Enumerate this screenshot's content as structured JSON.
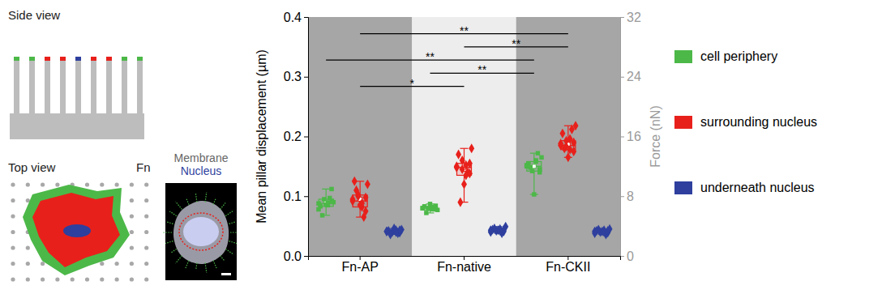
{
  "schematic": {
    "side_view": "Side view",
    "top_view": "Top view",
    "top_view_label": "Fn",
    "image_labels": [
      "Membrane",
      "Nucleus"
    ]
  },
  "chart_data": {
    "type": "box",
    "categories": [
      "Fn-AP",
      "Fn-native",
      "Fn-CKII"
    ],
    "y_label": "Mean pillar displacement (µm)",
    "y2_label": "Force (nN)",
    "ylim": [
      0,
      0.4
    ],
    "yticks": [
      {
        "value": 0,
        "label": "0.0"
      },
      {
        "value": 0.1,
        "label": "0.1"
      },
      {
        "value": 0.2,
        "label": "0.2"
      },
      {
        "value": 0.3,
        "label": "0.3"
      },
      {
        "value": 0.4,
        "label": "0.4"
      }
    ],
    "y2lim": [
      0,
      32
    ],
    "y2ticks": [
      0,
      8,
      16,
      24,
      32
    ],
    "legend": "right",
    "series": [
      {
        "name": "cell periphery",
        "color": "#4cb848",
        "marker": "square",
        "boxes": [
          {
            "min": 0.068,
            "q1": 0.083,
            "median": 0.088,
            "q3": 0.095,
            "max": 0.112,
            "mean": 0.089
          },
          {
            "min": 0.072,
            "q1": 0.077,
            "median": 0.08,
            "q3": 0.083,
            "max": 0.087,
            "mean": 0.08
          },
          {
            "min": 0.103,
            "q1": 0.142,
            "median": 0.15,
            "q3": 0.158,
            "max": 0.172,
            "mean": 0.15
          }
        ],
        "points": [
          [
            0.088,
            0.092,
            0.085,
            0.095,
            0.083,
            0.09,
            0.097,
            0.086,
            0.068,
            0.078,
            0.112,
            0.089
          ],
          [
            0.08,
            0.078,
            0.082,
            0.079,
            0.083,
            0.077,
            0.081,
            0.087,
            0.072,
            0.08,
            0.084,
            0.078
          ],
          [
            0.15,
            0.145,
            0.158,
            0.142,
            0.155,
            0.165,
            0.172,
            0.103,
            0.148,
            0.152,
            0.14,
            0.16
          ]
        ]
      },
      {
        "name": "surrounding nucleus",
        "color": "#e8201b",
        "marker": "diamond",
        "boxes": [
          {
            "min": 0.065,
            "q1": 0.082,
            "median": 0.092,
            "q3": 0.102,
            "max": 0.125,
            "mean": 0.095
          },
          {
            "min": 0.09,
            "q1": 0.135,
            "median": 0.148,
            "q3": 0.155,
            "max": 0.18,
            "mean": 0.145
          },
          {
            "min": 0.165,
            "q1": 0.178,
            "median": 0.185,
            "q3": 0.193,
            "max": 0.218,
            "mean": 0.187
          }
        ],
        "points": [
          [
            0.092,
            0.098,
            0.082,
            0.102,
            0.125,
            0.12,
            0.065,
            0.085,
            0.11,
            0.095,
            0.075,
            0.088,
            0.1
          ],
          [
            0.148,
            0.155,
            0.135,
            0.16,
            0.17,
            0.18,
            0.14,
            0.12,
            0.09,
            0.15,
            0.138,
            0.152,
            0.145
          ],
          [
            0.185,
            0.19,
            0.178,
            0.193,
            0.205,
            0.218,
            0.212,
            0.165,
            0.18,
            0.188,
            0.175,
            0.196,
            0.183
          ]
        ]
      },
      {
        "name": "underneath nucleus",
        "color": "#2e3f9e",
        "marker": "diamond",
        "boxes": [
          {
            "min": 0.036,
            "q1": 0.039,
            "median": 0.041,
            "q3": 0.043,
            "max": 0.046,
            "mean": 0.041
          },
          {
            "min": 0.038,
            "q1": 0.041,
            "median": 0.043,
            "q3": 0.045,
            "max": 0.049,
            "mean": 0.043
          },
          {
            "min": 0.036,
            "q1": 0.039,
            "median": 0.041,
            "q3": 0.043,
            "max": 0.045,
            "mean": 0.041
          }
        ],
        "points": [
          [
            0.041,
            0.039,
            0.043,
            0.04,
            0.042,
            0.044,
            0.038,
            0.046,
            0.036,
            0.041,
            0.043,
            0.04
          ],
          [
            0.043,
            0.041,
            0.045,
            0.042,
            0.044,
            0.049,
            0.038,
            0.043,
            0.046,
            0.04,
            0.044,
            0.042
          ],
          [
            0.041,
            0.039,
            0.043,
            0.04,
            0.042,
            0.045,
            0.036,
            0.041,
            0.044,
            0.038,
            0.042,
            0.04
          ]
        ]
      }
    ],
    "significance": [
      {
        "from": [
          0,
          1
        ],
        "to": [
          2,
          1
        ],
        "y": 0.372,
        "label": "**"
      },
      {
        "from": [
          1,
          1
        ],
        "to": [
          2,
          1
        ],
        "y": 0.35,
        "label": "**"
      },
      {
        "from": [
          0,
          0
        ],
        "to": [
          2,
          0
        ],
        "y": 0.328,
        "label": "**"
      },
      {
        "from": [
          1,
          0
        ],
        "to": [
          2,
          0
        ],
        "y": 0.306,
        "label": "**"
      },
      {
        "from": [
          0,
          1
        ],
        "to": [
          1,
          1
        ],
        "y": 0.284,
        "label": "*"
      }
    ]
  }
}
